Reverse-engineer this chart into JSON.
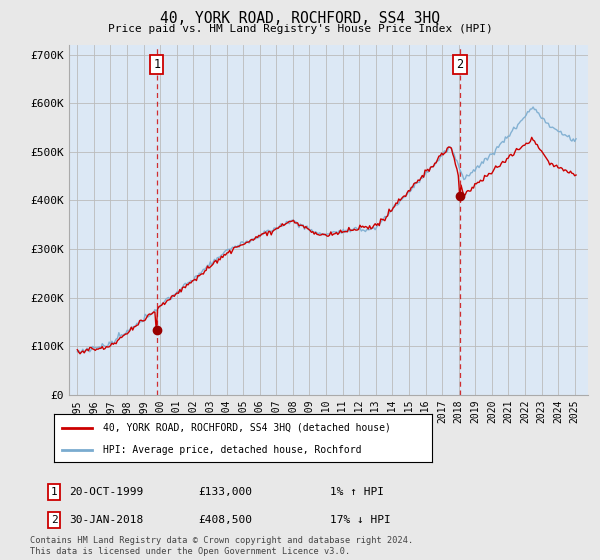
{
  "title": "40, YORK ROAD, ROCHFORD, SS4 3HQ",
  "subtitle": "Price paid vs. HM Land Registry's House Price Index (HPI)",
  "ylabel_ticks": [
    "£0",
    "£100K",
    "£200K",
    "£300K",
    "£400K",
    "£500K",
    "£600K",
    "£700K"
  ],
  "ytick_values": [
    0,
    100000,
    200000,
    300000,
    400000,
    500000,
    600000,
    700000
  ],
  "ylim": [
    0,
    720000
  ],
  "sale1_date": "20-OCT-1999",
  "sale1_price": 133000,
  "sale1_hpi_pct": "1% ↑ HPI",
  "sale2_date": "30-JAN-2018",
  "sale2_price": 408500,
  "sale2_hpi_pct": "17% ↓ HPI",
  "legend_label1": "40, YORK ROAD, ROCHFORD, SS4 3HQ (detached house)",
  "legend_label2": "HPI: Average price, detached house, Rochford",
  "footnote": "Contains HM Land Registry data © Crown copyright and database right 2024.\nThis data is licensed under the Open Government Licence v3.0.",
  "line_color_red": "#cc0000",
  "line_color_blue": "#7aabcf",
  "grid_color": "#cccccc",
  "bg_color": "#e8e8e8",
  "plot_bg_color": "#dce8f5",
  "marker1_x": 1999.8,
  "marker1_y": 133000,
  "marker2_x": 2018.08,
  "marker2_y": 408500,
  "vline1_x": 1999.8,
  "vline2_x": 2018.08,
  "xlim_left": 1994.5,
  "xlim_right": 2025.8
}
